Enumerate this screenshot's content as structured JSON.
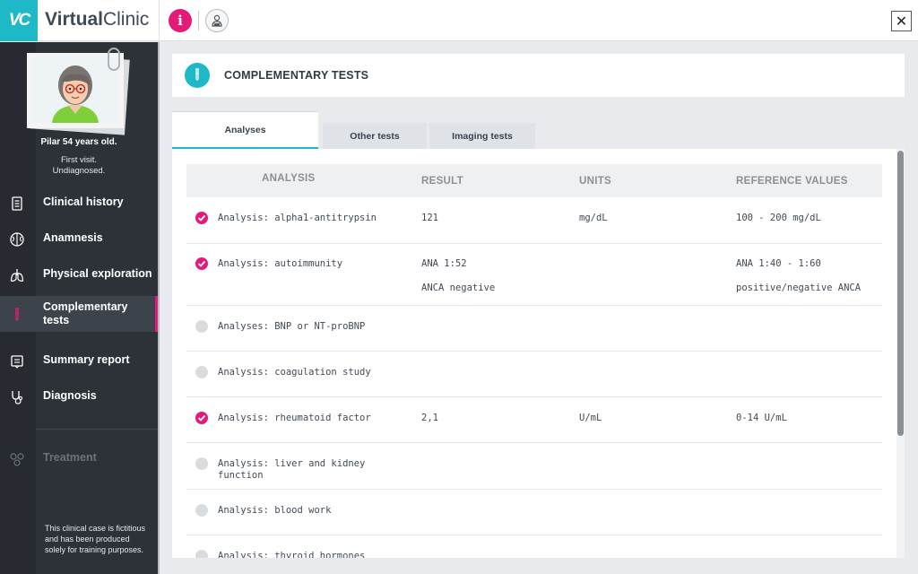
{
  "app": {
    "logo_text": "VC",
    "brand_prefix": "Virtual",
    "brand_suffix": "Clinic",
    "info_glyph": "i",
    "close_glyph": "✕"
  },
  "patient": {
    "name": "Pilar 54 years old.",
    "visit": "First visit.",
    "diagnosis_status": "Undiagnosed."
  },
  "sidebar": {
    "items": [
      {
        "label": "Clinical history",
        "icon": "clipboard-icon"
      },
      {
        "label": "Anamnesis",
        "icon": "brain-icon"
      },
      {
        "label": "Physical exploration",
        "icon": "lungs-icon"
      },
      {
        "label": "Complementary tests",
        "icon": "test-tube-icon"
      },
      {
        "label": "Summary report",
        "icon": "report-icon"
      },
      {
        "label": "Diagnosis",
        "icon": "stethoscope-icon"
      },
      {
        "label": "Treatment",
        "icon": "pills-icon"
      }
    ],
    "active_index": 3,
    "disclaimer": "This clinical case is fictitious and has been produced solely for training purposes."
  },
  "section": {
    "title": "COMPLEMENTARY TESTS"
  },
  "tabs": [
    {
      "label": "Analyses",
      "active": true
    },
    {
      "label": "Other tests",
      "active": false
    },
    {
      "label": "Imaging tests",
      "active": false
    }
  ],
  "table": {
    "columns": [
      "ANALYSIS",
      "RESULT",
      "UNITS",
      "REFERENCE VALUES"
    ],
    "rows": [
      {
        "checked": true,
        "analysis": "Analysis: alpha1-antitrypsin",
        "result": "121",
        "result2": "",
        "units": "mg/dL",
        "reference": "100 - 200 mg/dL",
        "reference2": ""
      },
      {
        "checked": true,
        "analysis": "Analysis: autoimmunity",
        "result": "ANA 1:52",
        "result2": "ANCA negative",
        "units": "",
        "reference": "ANA 1:40 - 1:60",
        "reference2": "positive/negative ANCA"
      },
      {
        "checked": false,
        "analysis": "Analyses: BNP or NT-proBNP",
        "result": "",
        "result2": "",
        "units": "",
        "reference": "",
        "reference2": ""
      },
      {
        "checked": false,
        "analysis": "Analysis: coagulation study",
        "result": "",
        "result2": "",
        "units": "",
        "reference": "",
        "reference2": ""
      },
      {
        "checked": true,
        "analysis": "Analysis: rheumatoid factor",
        "result": "2,1",
        "result2": "",
        "units": "U/mL",
        "reference": "0-14 U/mL",
        "reference2": ""
      },
      {
        "checked": false,
        "analysis": "Analysis: liver and kidney",
        "analysis2": "function",
        "result": "",
        "result2": "",
        "units": "",
        "reference": "",
        "reference2": ""
      },
      {
        "checked": false,
        "analysis": "Analysis: blood work",
        "result": "",
        "result2": "",
        "units": "",
        "reference": "",
        "reference2": ""
      },
      {
        "checked": false,
        "analysis": "Analysis: thyroid hormones",
        "result": "",
        "result2": "",
        "units": "",
        "reference": "",
        "reference2": ""
      }
    ]
  },
  "colors": {
    "accent_teal": "#1fb8c6",
    "accent_pink": "#e4197a",
    "sidebar_bg": "#2d3239"
  }
}
